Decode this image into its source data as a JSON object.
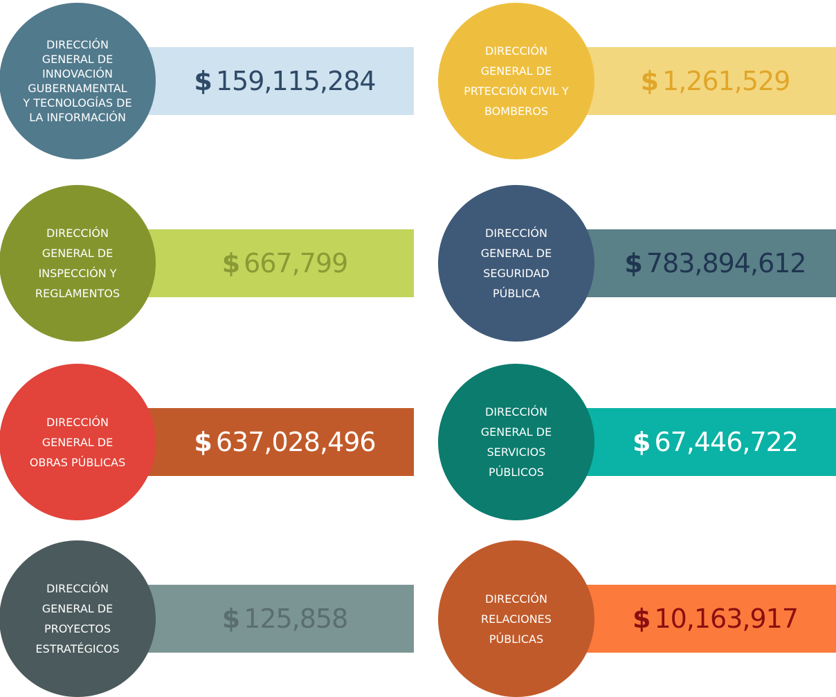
{
  "currency": "$",
  "items": [
    {
      "label": [
        "DIRECCIÓN",
        "GENERAL DE",
        "INNOVACIÓN",
        "GUBERNAMENTAL",
        "Y TECNOLOGÍAS DE",
        "LA INFORMACIÓN"
      ],
      "amount": "159,115,284"
    },
    {
      "label": [
        "DIRECCIÓN",
        "GENERAL DE",
        "PRTECCIÓN CIVIL Y",
        "BOMBEROS"
      ],
      "amount": "1,261,529"
    },
    {
      "label": [
        "DIRECCIÓN",
        "GENERAL DE",
        "INSPECCIÓN Y",
        "REGLAMENTOS"
      ],
      "amount": "667,799"
    },
    {
      "label": [
        "DIRECCIÓN",
        "GENERAL DE",
        "SEGURIDAD",
        "PÚBLICA"
      ],
      "amount": "783,894,612"
    },
    {
      "label": [
        "DIRECCIÓN",
        "GENERAL DE",
        "OBRAS PÚBLICAS"
      ],
      "amount": "637,028,496"
    },
    {
      "label": [
        "DIRECCIÓN",
        "GENERAL DE",
        "SERVICIOS",
        "PÚBLICOS"
      ],
      "amount": "67,446,722"
    },
    {
      "label": [
        "DIRECCIÓN",
        "GENERAL DE",
        "PROYECTOS",
        "ESTRATÉGICOS"
      ],
      "amount": "125,858"
    },
    {
      "label": [
        "DIRECCIÓN",
        "RELACIONES",
        "PÚBLICAS"
      ],
      "amount": "10,163,917"
    }
  ]
}
